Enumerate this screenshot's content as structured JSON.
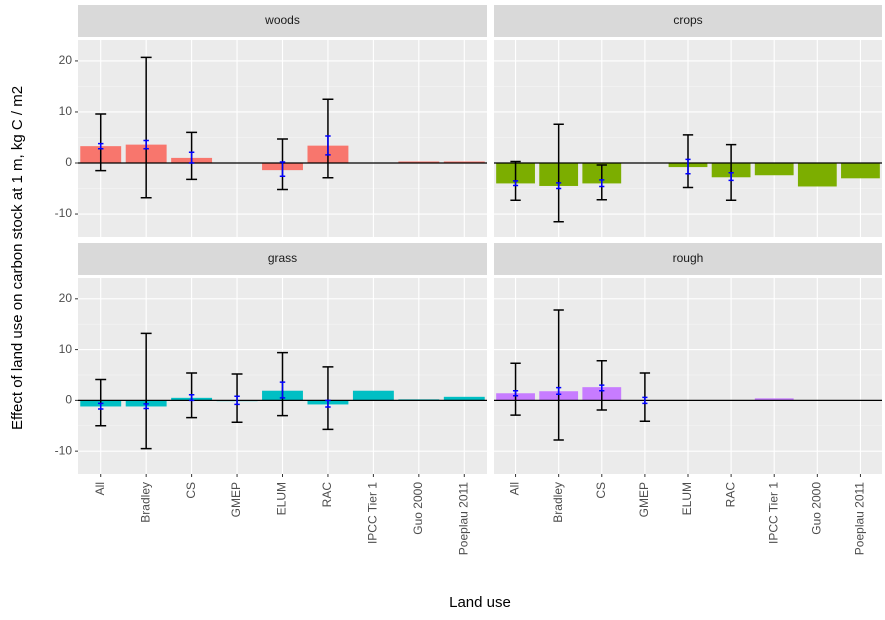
{
  "y_label": "Effect of land use on carbon stock at 1 m, kg C / m2",
  "x_label": "Land use",
  "categories": [
    "All",
    "Bradley",
    "CS",
    "GMEP",
    "ELUM",
    "RAC",
    "IPCC Tier 1",
    "Guo 2000",
    "Poeplau 2011"
  ],
  "chart_data": [
    {
      "type": "bar",
      "title": "woods",
      "color": "#F8766D",
      "ylim": [
        -14.5,
        24.1
      ],
      "yticks": [
        -10,
        0,
        10,
        20
      ],
      "grid": true,
      "values": [
        3.3,
        3.6,
        1.0,
        null,
        -1.4,
        3.4,
        null,
        0.3,
        0.3
      ],
      "error_low": [
        -1.5,
        -6.8,
        -3.2,
        null,
        -5.2,
        -2.9,
        null,
        null,
        null
      ],
      "error_high": [
        9.6,
        20.7,
        6.0,
        null,
        4.7,
        12.5,
        null,
        null,
        null
      ],
      "ci_low": [
        2.8,
        2.8,
        0.0,
        null,
        -2.6,
        1.6,
        null,
        null,
        null
      ],
      "ci_high": [
        3.8,
        4.4,
        2.1,
        null,
        0.2,
        5.3,
        null,
        null,
        null
      ]
    },
    {
      "type": "bar",
      "title": "crops",
      "color": "#7CAE00",
      "ylim": [
        -14.5,
        24.1
      ],
      "yticks": [
        -10,
        0,
        10,
        20
      ],
      "grid": true,
      "values": [
        -4.0,
        -4.5,
        -4.0,
        null,
        -0.8,
        -2.8,
        -2.4,
        -4.6,
        -3.0
      ],
      "error_low": [
        -7.3,
        -11.5,
        -7.2,
        null,
        -4.8,
        -7.3,
        null,
        null,
        null
      ],
      "error_high": [
        0.3,
        7.6,
        -0.4,
        null,
        5.5,
        3.6,
        null,
        null,
        null
      ],
      "ci_low": [
        -4.4,
        -5.0,
        -4.6,
        null,
        -2.1,
        -3.4,
        null,
        null,
        null
      ],
      "ci_high": [
        -3.5,
        -3.9,
        -3.3,
        null,
        0.7,
        -1.9,
        null,
        null,
        null
      ]
    },
    {
      "type": "bar",
      "title": "grass",
      "color": "#00BFC4",
      "ylim": [
        -14.5,
        24.1
      ],
      "yticks": [
        -10,
        0,
        10,
        20
      ],
      "grid": true,
      "values": [
        -1.2,
        -1.2,
        0.5,
        0.0,
        1.9,
        -0.8,
        1.9,
        0.2,
        0.7
      ],
      "error_low": [
        -5.0,
        -9.5,
        -3.4,
        -4.3,
        -3.0,
        -5.7,
        null,
        null,
        null
      ],
      "error_high": [
        4.1,
        13.2,
        5.4,
        5.2,
        9.4,
        6.6,
        null,
        null,
        null
      ],
      "ci_low": [
        -1.7,
        -1.6,
        0.0,
        -0.8,
        0.5,
        -1.3,
        null,
        null,
        null
      ],
      "ci_high": [
        -0.6,
        -0.7,
        1.1,
        0.8,
        3.6,
        0.0,
        null,
        null,
        null
      ]
    },
    {
      "type": "bar",
      "title": "rough",
      "color": "#C77CFF",
      "ylim": [
        -14.5,
        24.1
      ],
      "yticks": [
        -10,
        0,
        10,
        20
      ],
      "grid": true,
      "values": [
        1.4,
        1.8,
        2.6,
        null,
        null,
        null,
        0.4,
        null,
        null
      ],
      "error_low": [
        -2.9,
        -7.8,
        -1.9,
        -4.1,
        null,
        null,
        null,
        null,
        null
      ],
      "error_high": [
        7.3,
        17.8,
        7.8,
        5.4,
        null,
        null,
        null,
        null,
        null
      ],
      "ci_low": [
        0.9,
        1.2,
        1.9,
        -0.6,
        null,
        null,
        null,
        null,
        null
      ],
      "ci_high": [
        1.9,
        2.5,
        3.0,
        0.6,
        null,
        null,
        null,
        null,
        null
      ]
    }
  ]
}
